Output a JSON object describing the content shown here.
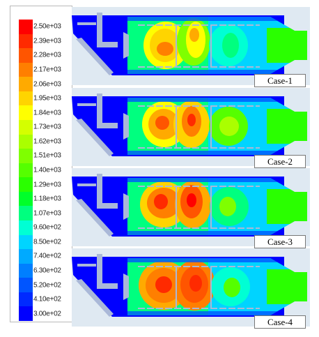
{
  "legend": {
    "labels": [
      "2.50e+03",
      "2.39e+03",
      "2.28e+03",
      "2.17e+03",
      "2.06e+03",
      "1.95e+03",
      "1.84e+03",
      "1.73e+03",
      "1.62e+03",
      "1.51e+03",
      "1.40e+03",
      "1.29e+03",
      "1.18e+03",
      "1.07e+03",
      "9.60e+02",
      "8.50e+02",
      "7.40e+02",
      "6.30e+02",
      "5.20e+02",
      "4.10e+02",
      "3.00e+02"
    ],
    "colors": [
      "#ff0000",
      "#ff2a00",
      "#ff5500",
      "#ff7f00",
      "#ffaa00",
      "#ffd400",
      "#ffff00",
      "#d4ff00",
      "#aaff00",
      "#7fff00",
      "#55ff00",
      "#2aff00",
      "#00ff2a",
      "#00ff7f",
      "#00ffd4",
      "#00d4ff",
      "#00aaff",
      "#007fff",
      "#0055ff",
      "#002aff",
      "#0000ff"
    ]
  },
  "panels": [
    {
      "case_label": "Case-1",
      "variant": 1
    },
    {
      "case_label": "Case-2",
      "variant": 2
    },
    {
      "case_label": "Case-3",
      "variant": 3
    },
    {
      "case_label": "Case-4",
      "variant": 4
    }
  ]
}
